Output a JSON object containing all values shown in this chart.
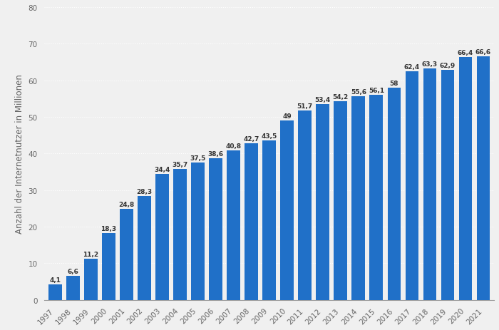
{
  "years": [
    "1997",
    "1998",
    "1999",
    "2000",
    "2001",
    "2002",
    "2003",
    "2004",
    "2005",
    "2006",
    "2007",
    "2008",
    "2009",
    "2010",
    "2011",
    "2012",
    "2013",
    "2014",
    "2015",
    "2016",
    "2017",
    "2018",
    "2019",
    "2020",
    "2021"
  ],
  "values": [
    4.1,
    6.6,
    11.2,
    18.3,
    24.8,
    28.3,
    34.4,
    35.7,
    37.5,
    38.6,
    40.8,
    42.7,
    43.5,
    49.0,
    51.7,
    53.4,
    54.2,
    55.6,
    56.1,
    58.0,
    62.4,
    63.3,
    62.9,
    66.4,
    66.6
  ],
  "bar_color": "#2070c8",
  "background_color": "#f0f0f0",
  "plot_bg_color": "#f0f0f0",
  "ylabel": "Anzahl der Internetnutzer in Millionen",
  "ylim": [
    0,
    80
  ],
  "yticks": [
    0,
    10,
    20,
    30,
    40,
    50,
    60,
    70,
    80
  ],
  "grid_color": "#ffffff",
  "label_fontsize": 6.5,
  "axis_label_fontsize": 8.5,
  "tick_fontsize": 7.5,
  "bar_width": 0.75
}
